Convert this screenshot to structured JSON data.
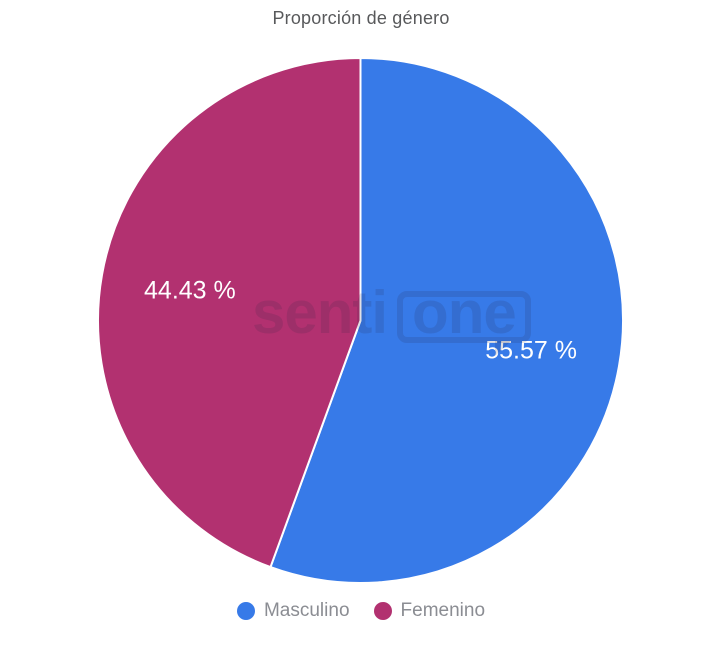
{
  "chart_data": {
    "type": "pie",
    "title": "Proporción de género",
    "series": [
      {
        "name": "Masculino",
        "value": 55.57,
        "label": "55.57 %",
        "color": "#377AE8"
      },
      {
        "name": "Femenino",
        "value": 44.43,
        "label": "44.43 %",
        "color": "#B23170"
      }
    ],
    "start_angle_deg": 0,
    "direction": "clockwise",
    "legend_position": "bottom",
    "slice_label_color": "#ffffff",
    "slice_border_color": "#ffffff",
    "title_color": "#58595B",
    "legend_text_color": "#8B8D93"
  },
  "watermark": {
    "text_left": "senti",
    "text_boxed": "one"
  }
}
